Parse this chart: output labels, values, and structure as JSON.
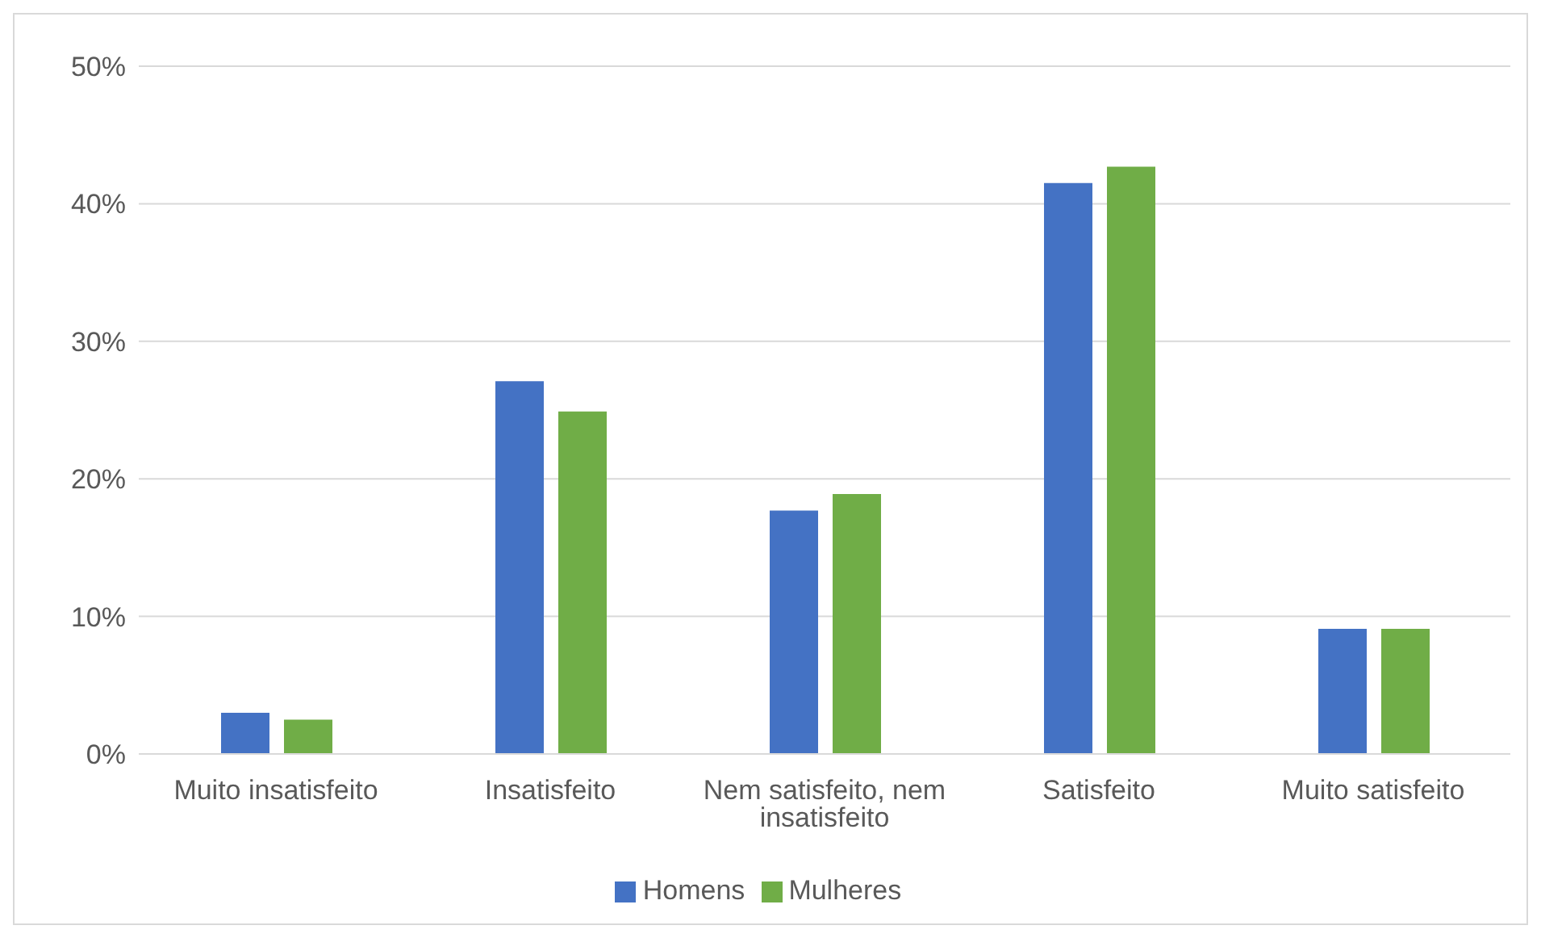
{
  "chart_data": {
    "type": "bar",
    "categories": [
      "Muito insatisfeito",
      "Insatisfeito",
      "Nem satisfeito, nem insatisfeito",
      "Satisfeito",
      "Muito satisfeito"
    ],
    "series": [
      {
        "name": "Homens",
        "color": "#4472c4",
        "values": [
          3.0,
          27.1,
          17.7,
          41.5,
          9.1
        ]
      },
      {
        "name": "Mulheres",
        "color": "#70ad47",
        "values": [
          2.5,
          24.9,
          18.9,
          42.7,
          9.1
        ]
      }
    ],
    "ylim": [
      0,
      50
    ],
    "yticks": [
      {
        "value": 0,
        "label": "0%"
      },
      {
        "value": 10,
        "label": "10%"
      },
      {
        "value": 20,
        "label": "20%"
      },
      {
        "value": 30,
        "label": "30%"
      },
      {
        "value": 40,
        "label": "40%"
      },
      {
        "value": 50,
        "label": "50%"
      }
    ],
    "grid": "y",
    "legend": "bottom"
  }
}
